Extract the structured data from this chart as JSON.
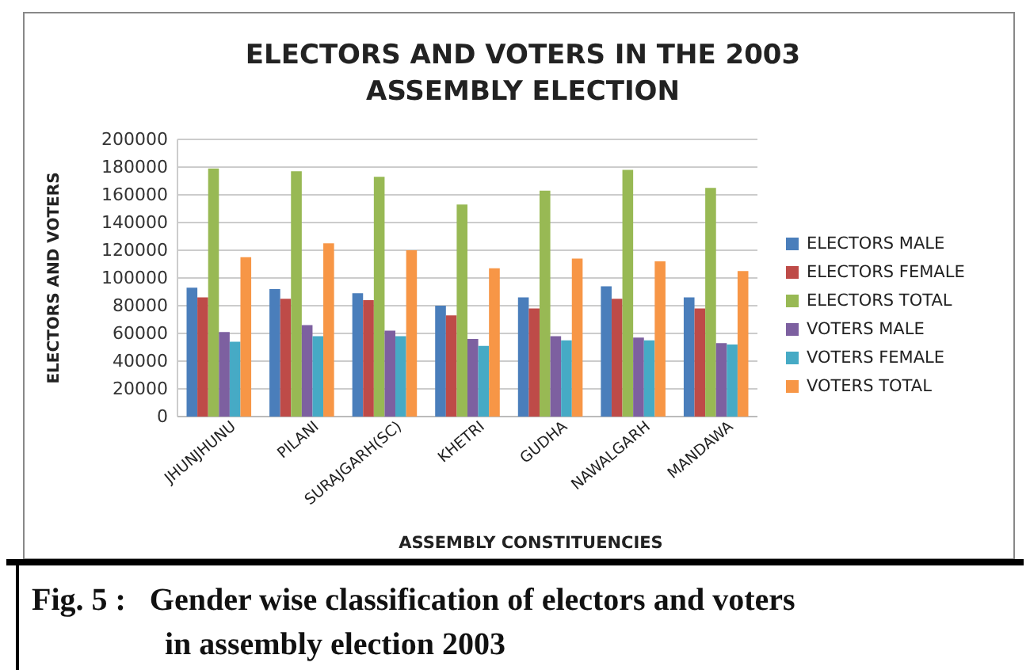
{
  "chart_data": {
    "type": "bar",
    "title": "ELECTORS AND VOTERS IN THE 2003 ASSEMBLY ELECTION",
    "xlabel": "ASSEMBLY CONSTITUENCIES",
    "ylabel": "ELECTORS AND VOTERS",
    "categories": [
      "JHUNJHUNU",
      "PILANI",
      "SURAJGARH(SC)",
      "KHETRI",
      "GUDHA",
      "NAWALGARH",
      "MANDAWA"
    ],
    "series": [
      {
        "name": "ELECTORS MALE",
        "color": "#4a7ebb",
        "values": [
          93000,
          92000,
          89000,
          80000,
          86000,
          94000,
          86000
        ]
      },
      {
        "name": "ELECTORS FEMALE",
        "color": "#be4b48",
        "values": [
          86000,
          85000,
          84000,
          73000,
          78000,
          85000,
          78000
        ]
      },
      {
        "name": "ELECTORS TOTAL",
        "color": "#98b954",
        "values": [
          179000,
          177000,
          173000,
          153000,
          163000,
          178000,
          165000
        ]
      },
      {
        "name": "VOTERS MALE",
        "color": "#7d60a0",
        "values": [
          61000,
          66000,
          62000,
          56000,
          58000,
          57000,
          53000
        ]
      },
      {
        "name": "VOTERS FEMALE",
        "color": "#46aac5",
        "values": [
          54000,
          58000,
          58000,
          51000,
          55000,
          55000,
          52000
        ]
      },
      {
        "name": "VOTERS TOTAL",
        "color": "#f79646",
        "values": [
          115000,
          125000,
          120000,
          107000,
          114000,
          112000,
          105000
        ]
      }
    ],
    "ylim": [
      0,
      200000
    ],
    "yticks": [
      0,
      20000,
      40000,
      60000,
      80000,
      100000,
      120000,
      140000,
      160000,
      180000,
      200000
    ],
    "grid": "y",
    "legend": "right",
    "annotations": [
      "Fig. 5 :   Gender wise classification of electors and voters in assembly election 2003"
    ]
  }
}
